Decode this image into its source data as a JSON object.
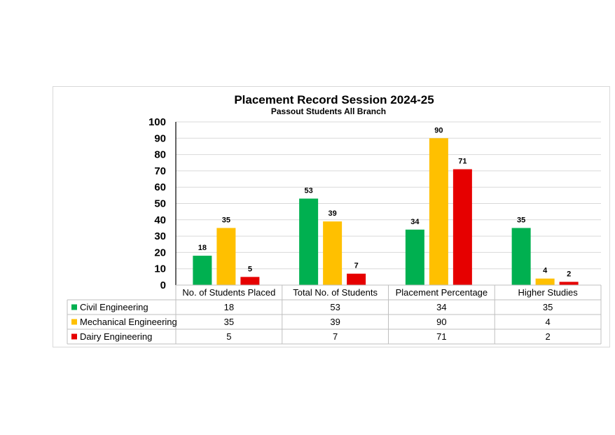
{
  "chart_data": {
    "type": "bar",
    "title": "Placement Record Session 2024-25",
    "subtitle": "Passout Students All Branch",
    "categories": [
      "No. of Students Placed",
      "Total No. of Students",
      "Placement Percentage",
      "Higher Studies"
    ],
    "series": [
      {
        "name": "Civil Engineering",
        "color": "#00b050",
        "values": [
          18,
          53,
          34,
          35
        ]
      },
      {
        "name": "Mechanical Engineering",
        "color": "#ffc000",
        "values": [
          35,
          39,
          90,
          4
        ]
      },
      {
        "name": "Dairy Engineering",
        "color": "#e60000",
        "values": [
          5,
          7,
          71,
          2
        ]
      }
    ],
    "ylim": [
      0,
      100
    ],
    "yticks": [
      0,
      10,
      20,
      30,
      40,
      50,
      60,
      70,
      80,
      90,
      100
    ],
    "grid": true,
    "legend": "data-table"
  }
}
